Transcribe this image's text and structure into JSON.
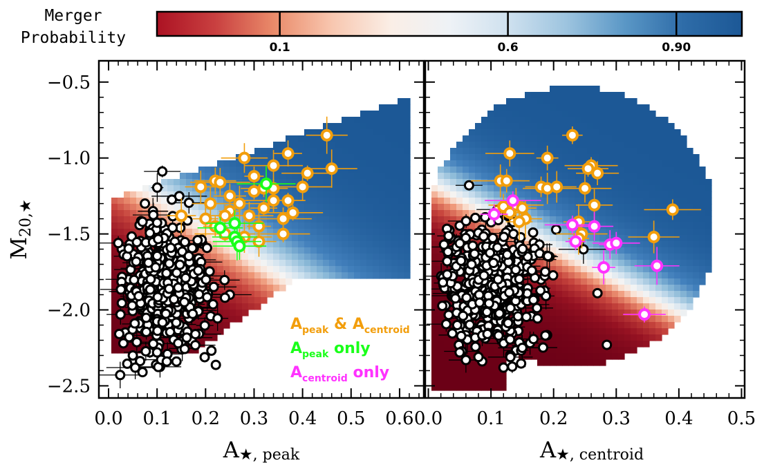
{
  "colorbar": {
    "title_line1": "Merger",
    "title_line2": "Probability",
    "ticks": [
      {
        "value": 0.1,
        "label": "0.1"
      },
      {
        "value": 0.6,
        "label": "0.6"
      },
      {
        "value": 0.9,
        "label": "0.90"
      }
    ],
    "colors": {
      "low": "#6b0016",
      "mid_low": "#f5b393",
      "mid": "#f7f4f2",
      "mid_high": "#8fbad8",
      "high": "#1c5896"
    }
  },
  "legend": {
    "both_main": "A",
    "both_sub1": "peak",
    "both_amp": " & ",
    "both_sub2": "centroid",
    "peak_main": "A",
    "peak_sub": "peak",
    "peak_only": " only",
    "centroid_main": "A",
    "centroid_sub": "centroid",
    "centroid_only": " only",
    "colors": {
      "both": "#f29e0c",
      "peak_only": "#1aff1a",
      "centroid_only": "#ff33ff"
    }
  },
  "chart_data": [
    {
      "type": "scatter",
      "panel": "left",
      "xlabel_main": "A",
      "xlabel_star": "★",
      "xlabel_sub": ", peak",
      "ylabel_main": "M",
      "ylabel_sub": "20,★",
      "xlim": [
        -0.02,
        0.65
      ],
      "ylim": [
        -2.58,
        -0.36
      ],
      "xticks": [
        {
          "value": 0.0,
          "label": "0.0"
        },
        {
          "value": 0.1,
          "label": "0.1"
        },
        {
          "value": 0.2,
          "label": "0.2"
        },
        {
          "value": 0.3,
          "label": "0.3"
        },
        {
          "value": 0.4,
          "label": "0.4"
        },
        {
          "value": 0.5,
          "label": "0.5"
        },
        {
          "value": 0.6,
          "label": "0.6"
        }
      ],
      "yticks": [
        {
          "value": -0.5,
          "label": "−0.5"
        },
        {
          "value": -1.0,
          "label": "−1.0"
        },
        {
          "value": -1.5,
          "label": "−1.5"
        },
        {
          "value": -2.0,
          "label": "−2.0"
        },
        {
          "value": -2.5,
          "label": "−2.5"
        }
      ],
      "both_points": [
        [
          0.45,
          -0.85
        ],
        [
          0.37,
          -0.97
        ],
        [
          0.28,
          -1.0
        ],
        [
          0.34,
          -1.05
        ],
        [
          0.46,
          -1.07
        ],
        [
          0.41,
          -1.1
        ],
        [
          0.3,
          -1.12
        ],
        [
          0.22,
          -1.15
        ],
        [
          0.23,
          -1.16
        ],
        [
          0.32,
          -1.2
        ],
        [
          0.34,
          -1.2
        ],
        [
          0.19,
          -1.19
        ],
        [
          0.4,
          -1.19
        ],
        [
          0.3,
          -1.22
        ],
        [
          0.25,
          -1.25
        ],
        [
          0.34,
          -1.28
        ],
        [
          0.37,
          -1.28
        ],
        [
          0.27,
          -1.3
        ],
        [
          0.21,
          -1.3
        ],
        [
          0.32,
          -1.33
        ],
        [
          0.25,
          -1.35
        ],
        [
          0.38,
          -1.36
        ],
        [
          0.29,
          -1.38
        ],
        [
          0.24,
          -1.38
        ],
        [
          0.15,
          -1.38
        ],
        [
          0.2,
          -1.4
        ],
        [
          0.36,
          -1.4
        ],
        [
          0.22,
          -1.45
        ],
        [
          0.31,
          -1.45
        ],
        [
          0.36,
          -1.5
        ],
        [
          0.28,
          -1.52
        ],
        [
          0.31,
          -1.55
        ],
        [
          0.24,
          -1.5
        ],
        [
          0.27,
          -1.55
        ]
      ],
      "peak_only_points": [
        [
          0.325,
          -1.17
        ],
        [
          0.26,
          -1.43
        ],
        [
          0.23,
          -1.46
        ],
        [
          0.26,
          -1.52
        ],
        [
          0.265,
          -1.55
        ],
        [
          0.27,
          -1.58
        ]
      ],
      "other_points_count": 450
    },
    {
      "type": "scatter",
      "panel": "right",
      "xlabel_main": "A",
      "xlabel_star": "★",
      "xlabel_sub": ", centroid",
      "xlim": [
        -0.005,
        0.505
      ],
      "ylim": [
        -2.58,
        -0.36
      ],
      "xticks": [
        {
          "value": 0.0,
          "label": "0.0"
        },
        {
          "value": 0.1,
          "label": "0.1"
        },
        {
          "value": 0.2,
          "label": "0.2"
        },
        {
          "value": 0.3,
          "label": "0.3"
        },
        {
          "value": 0.4,
          "label": "0.4"
        },
        {
          "value": 0.5,
          "label": "0.5"
        }
      ],
      "both_points": [
        [
          0.23,
          -0.85
        ],
        [
          0.13,
          -0.97
        ],
        [
          0.19,
          -1.0
        ],
        [
          0.26,
          -1.05
        ],
        [
          0.255,
          -1.07
        ],
        [
          0.27,
          -1.1
        ],
        [
          0.115,
          -1.15
        ],
        [
          0.125,
          -1.15
        ],
        [
          0.25,
          -1.2
        ],
        [
          0.18,
          -1.19
        ],
        [
          0.19,
          -1.2
        ],
        [
          0.205,
          -1.19
        ],
        [
          0.265,
          -1.31
        ],
        [
          0.14,
          -1.31
        ],
        [
          0.15,
          -1.33
        ],
        [
          0.12,
          -1.32
        ],
        [
          0.13,
          -1.36
        ],
        [
          0.39,
          -1.34
        ],
        [
          0.155,
          -1.4
        ],
        [
          0.145,
          -1.42
        ],
        [
          0.24,
          -1.42
        ],
        [
          0.245,
          -1.5
        ],
        [
          0.24,
          -1.53
        ],
        [
          0.36,
          -1.52
        ]
      ],
      "centroid_only_points": [
        [
          0.105,
          -1.37
        ],
        [
          0.135,
          -1.28
        ],
        [
          0.23,
          -1.44
        ],
        [
          0.265,
          -1.45
        ],
        [
          0.235,
          -1.55
        ],
        [
          0.29,
          -1.57
        ],
        [
          0.3,
          -1.56
        ],
        [
          0.28,
          -1.72
        ],
        [
          0.365,
          -1.71
        ],
        [
          0.345,
          -2.03
        ]
      ],
      "other_points_count": 450
    }
  ]
}
